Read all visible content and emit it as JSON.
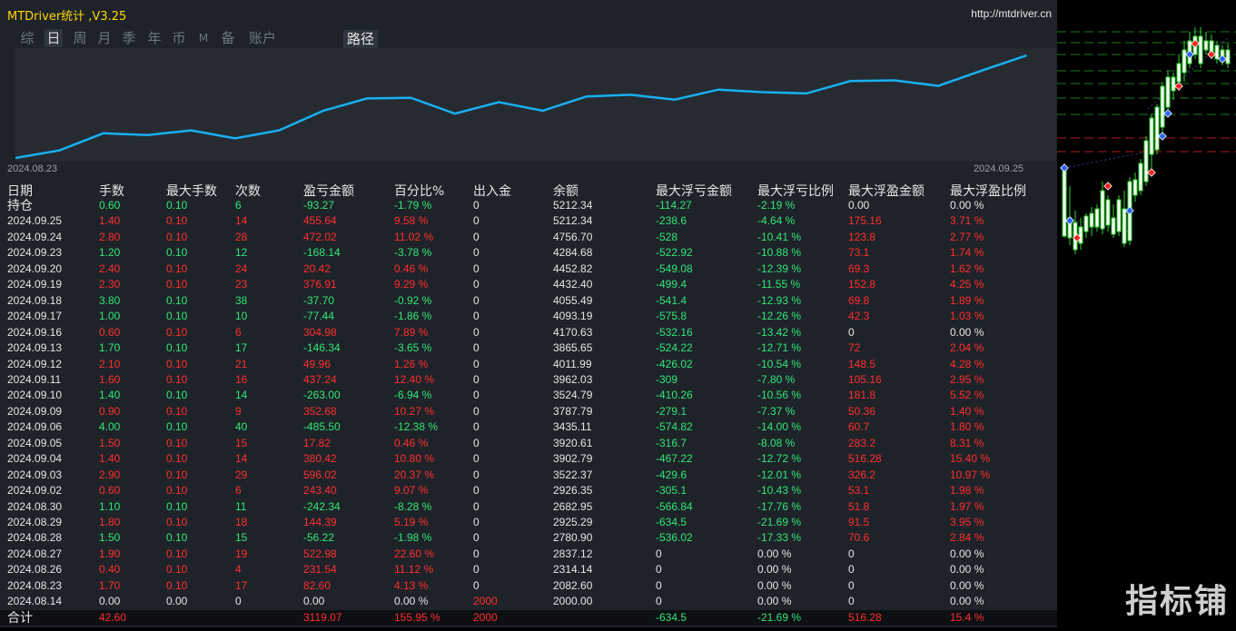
{
  "window": {
    "title": "MTDriver统计 ,V3.25",
    "site": "http://mtdriver.cn"
  },
  "tabs": [
    "综",
    "日",
    "周",
    "月",
    "季",
    "年",
    "币",
    "M",
    "备",
    "账户"
  ],
  "active_tab": "日",
  "path_tab": "路径",
  "chart_data": {
    "type": "line",
    "x_start_label": "2024.08.23",
    "x_end_label": "2024.09.25",
    "series": [
      {
        "values": [
          2082.6,
          2314.14,
          2837.12,
          2780.9,
          2925.29,
          2682.95,
          2926.35,
          3522.37,
          3902.79,
          3920.61,
          3435.11,
          3787.79,
          3524.79,
          3962.03,
          4011.99,
          3865.65,
          4170.63,
          4093.19,
          4055.49,
          4432.4,
          4452.82,
          4284.68,
          4756.7,
          5212.34
        ]
      }
    ],
    "ylim": [
      2000,
      5300
    ],
    "grid": false,
    "color": "#18b0f0"
  },
  "table": {
    "headers": [
      "日期",
      "手数",
      "最大手数",
      "次数",
      "盈亏金额",
      "百分比%",
      "出入金",
      "余额",
      "最大浮亏金额",
      "最大浮亏比例",
      "最大浮盈金额",
      "最大浮盈比例"
    ],
    "rows": [
      [
        "持仓",
        "0.60",
        "0.10",
        "6",
        "-93.27",
        "-1.79 %",
        "0",
        "5212.34",
        "-114.27",
        "-2.19 %",
        "0.00",
        "0.00 %"
      ],
      [
        "2024.09.25",
        "1.40",
        "0.10",
        "14",
        "455.64",
        "9.58 %",
        "0",
        "5212.34",
        "-238.6",
        "-4.64 %",
        "175.16",
        "3.71 %"
      ],
      [
        "2024.09.24",
        "2.80",
        "0.10",
        "28",
        "472.02",
        "11.02 %",
        "0",
        "4756.70",
        "-528",
        "-10.41 %",
        "123.8",
        "2.77 %"
      ],
      [
        "2024.09.23",
        "1.20",
        "0.10",
        "12",
        "-168.14",
        "-3.78 %",
        "0",
        "4284.68",
        "-522.92",
        "-10.88 %",
        "73.1",
        "1.74 %"
      ],
      [
        "2024.09.20",
        "2.40",
        "0.10",
        "24",
        "20.42",
        "0.46 %",
        "0",
        "4452.82",
        "-549.08",
        "-12.39 %",
        "69.3",
        "1.62 %"
      ],
      [
        "2024.09.19",
        "2.30",
        "0.10",
        "23",
        "376.91",
        "9.29 %",
        "0",
        "4432.40",
        "-499.4",
        "-11.55 %",
        "152.8",
        "4.25 %"
      ],
      [
        "2024.09.18",
        "3.80",
        "0.10",
        "38",
        "-37.70",
        "-0.92 %",
        "0",
        "4055.49",
        "-541.4",
        "-12.93 %",
        "69.8",
        "1.89 %"
      ],
      [
        "2024.09.17",
        "1.00",
        "0.10",
        "10",
        "-77.44",
        "-1.86 %",
        "0",
        "4093.19",
        "-575.8",
        "-12.26 %",
        "42.3",
        "1.03 %"
      ],
      [
        "2024.09.16",
        "0.60",
        "0.10",
        "6",
        "304.98",
        "7.89 %",
        "0",
        "4170.63",
        "-532.16",
        "-13.42 %",
        "0",
        "0.00 %"
      ],
      [
        "2024.09.13",
        "1.70",
        "0.10",
        "17",
        "-146.34",
        "-3.65 %",
        "0",
        "3865.65",
        "-524.22",
        "-12.71 %",
        "72",
        "2.04 %"
      ],
      [
        "2024.09.12",
        "2.10",
        "0.10",
        "21",
        "49.96",
        "1.26 %",
        "0",
        "4011.99",
        "-426.02",
        "-10.54 %",
        "148.5",
        "4.28 %"
      ],
      [
        "2024.09.11",
        "1.60",
        "0.10",
        "16",
        "437.24",
        "12.40 %",
        "0",
        "3962.03",
        "-309",
        "-7.80 %",
        "105.16",
        "2.95 %"
      ],
      [
        "2024.09.10",
        "1.40",
        "0.10",
        "14",
        "-263.00",
        "-6.94 %",
        "0",
        "3524.79",
        "-410.26",
        "-10.56 %",
        "181.8",
        "5.52 %"
      ],
      [
        "2024.09.09",
        "0.90",
        "0.10",
        "9",
        "352.68",
        "10.27 %",
        "0",
        "3787.79",
        "-279.1",
        "-7.37 %",
        "50.36",
        "1.40 %"
      ],
      [
        "2024.09.06",
        "4.00",
        "0.10",
        "40",
        "-485.50",
        "-12.38 %",
        "0",
        "3435.11",
        "-574.82",
        "-14.00 %",
        "60.7",
        "1.80 %"
      ],
      [
        "2024.09.05",
        "1.50",
        "0.10",
        "15",
        "17.82",
        "0.46 %",
        "0",
        "3920.61",
        "-316.7",
        "-8.08 %",
        "283.2",
        "8.31 %"
      ],
      [
        "2024.09.04",
        "1.40",
        "0.10",
        "14",
        "380.42",
        "10.80 %",
        "0",
        "3902.79",
        "-467.22",
        "-12.72 %",
        "516.28",
        "15.40 %"
      ],
      [
        "2024.09.03",
        "2.90",
        "0.10",
        "29",
        "596.02",
        "20.37 %",
        "0",
        "3522.37",
        "-429.6",
        "-12.01 %",
        "326.2",
        "10.97 %"
      ],
      [
        "2024.09.02",
        "0.60",
        "0.10",
        "6",
        "243.40",
        "9.07 %",
        "0",
        "2926.35",
        "-305.1",
        "-10.43 %",
        "53.1",
        "1.98 %"
      ],
      [
        "2024.08.30",
        "1.10",
        "0.10",
        "11",
        "-242.34",
        "-8.28 %",
        "0",
        "2682.95",
        "-566.84",
        "-17.76 %",
        "51.8",
        "1.97 %"
      ],
      [
        "2024.08.29",
        "1.80",
        "0.10",
        "18",
        "144.39",
        "5.19 %",
        "0",
        "2925.29",
        "-634.5",
        "-21.69 %",
        "91.5",
        "3.95 %"
      ],
      [
        "2024.08.28",
        "1.50",
        "0.10",
        "15",
        "-56.22",
        "-1.98 %",
        "0",
        "2780.90",
        "-536.02",
        "-17.33 %",
        "70.6",
        "2.84 %"
      ],
      [
        "2024.08.27",
        "1.90",
        "0.10",
        "19",
        "522.98",
        "22.60 %",
        "0",
        "2837.12",
        "0",
        "0.00 %",
        "0",
        "0.00 %"
      ],
      [
        "2024.08.26",
        "0.40",
        "0.10",
        "4",
        "231.54",
        "11.12 %",
        "0",
        "2314.14",
        "0",
        "0.00 %",
        "0",
        "0.00 %"
      ],
      [
        "2024.08.23",
        "1.70",
        "0.10",
        "17",
        "82.60",
        "4.13 %",
        "0",
        "2082.60",
        "0",
        "0.00 %",
        "0",
        "0.00 %"
      ],
      [
        "2024.08.14",
        "0.00",
        "0.00",
        "0",
        "0.00",
        "0.00 %",
        "2000",
        "2000.00",
        "0",
        "0.00 %",
        "0",
        "0.00 %"
      ]
    ],
    "total": [
      "合计",
      "42.60",
      "",
      "",
      "3119.07",
      "155.95 %",
      "2000",
      "",
      "-634.5",
      "-21.69 %",
      "516.28",
      "15.4 %"
    ]
  },
  "colors": {
    "profit": "#ff2e2e",
    "loss": "#32e678",
    "neutral": "#e6e6e6",
    "title": "#ffd800"
  },
  "watermark": "指标铺"
}
